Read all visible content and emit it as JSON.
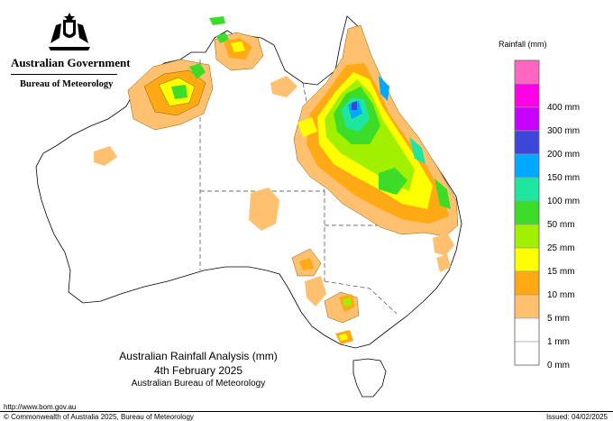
{
  "header": {
    "government": "Australian Government",
    "bureau": "Bureau of Meteorology"
  },
  "legend": {
    "title": "Rainfall (mm)",
    "bins": [
      {
        "label": "",
        "color": "#ff66c0"
      },
      {
        "label": "400 mm",
        "color": "#ff00e6"
      },
      {
        "label": "300 mm",
        "color": "#c800ff"
      },
      {
        "label": "200 mm",
        "color": "#3c46d8"
      },
      {
        "label": "150 mm",
        "color": "#00a8ff"
      },
      {
        "label": "100 mm",
        "color": "#1ee6a0"
      },
      {
        "label": "50 mm",
        "color": "#3cdc28"
      },
      {
        "label": "25 mm",
        "color": "#a0f000"
      },
      {
        "label": "15 mm",
        "color": "#ffff00"
      },
      {
        "label": "10 mm",
        "color": "#ffaa14"
      },
      {
        "label": "5 mm",
        "color": "#ffc070"
      },
      {
        "label": "1 mm",
        "color": "#ffffff"
      },
      {
        "label": "0 mm",
        "color": "#ffffff"
      }
    ]
  },
  "title": {
    "line1": "Australian Rainfall Analysis (mm)",
    "line2": "4th February 2025",
    "line3": "Australian Bureau of Meteorology"
  },
  "footer": {
    "url": "http://www.bom.gov.au",
    "copyright": "© Commonwealth of Australia 2025, Bureau of Meteorology",
    "issued": "Issued: 04/02/2025"
  }
}
